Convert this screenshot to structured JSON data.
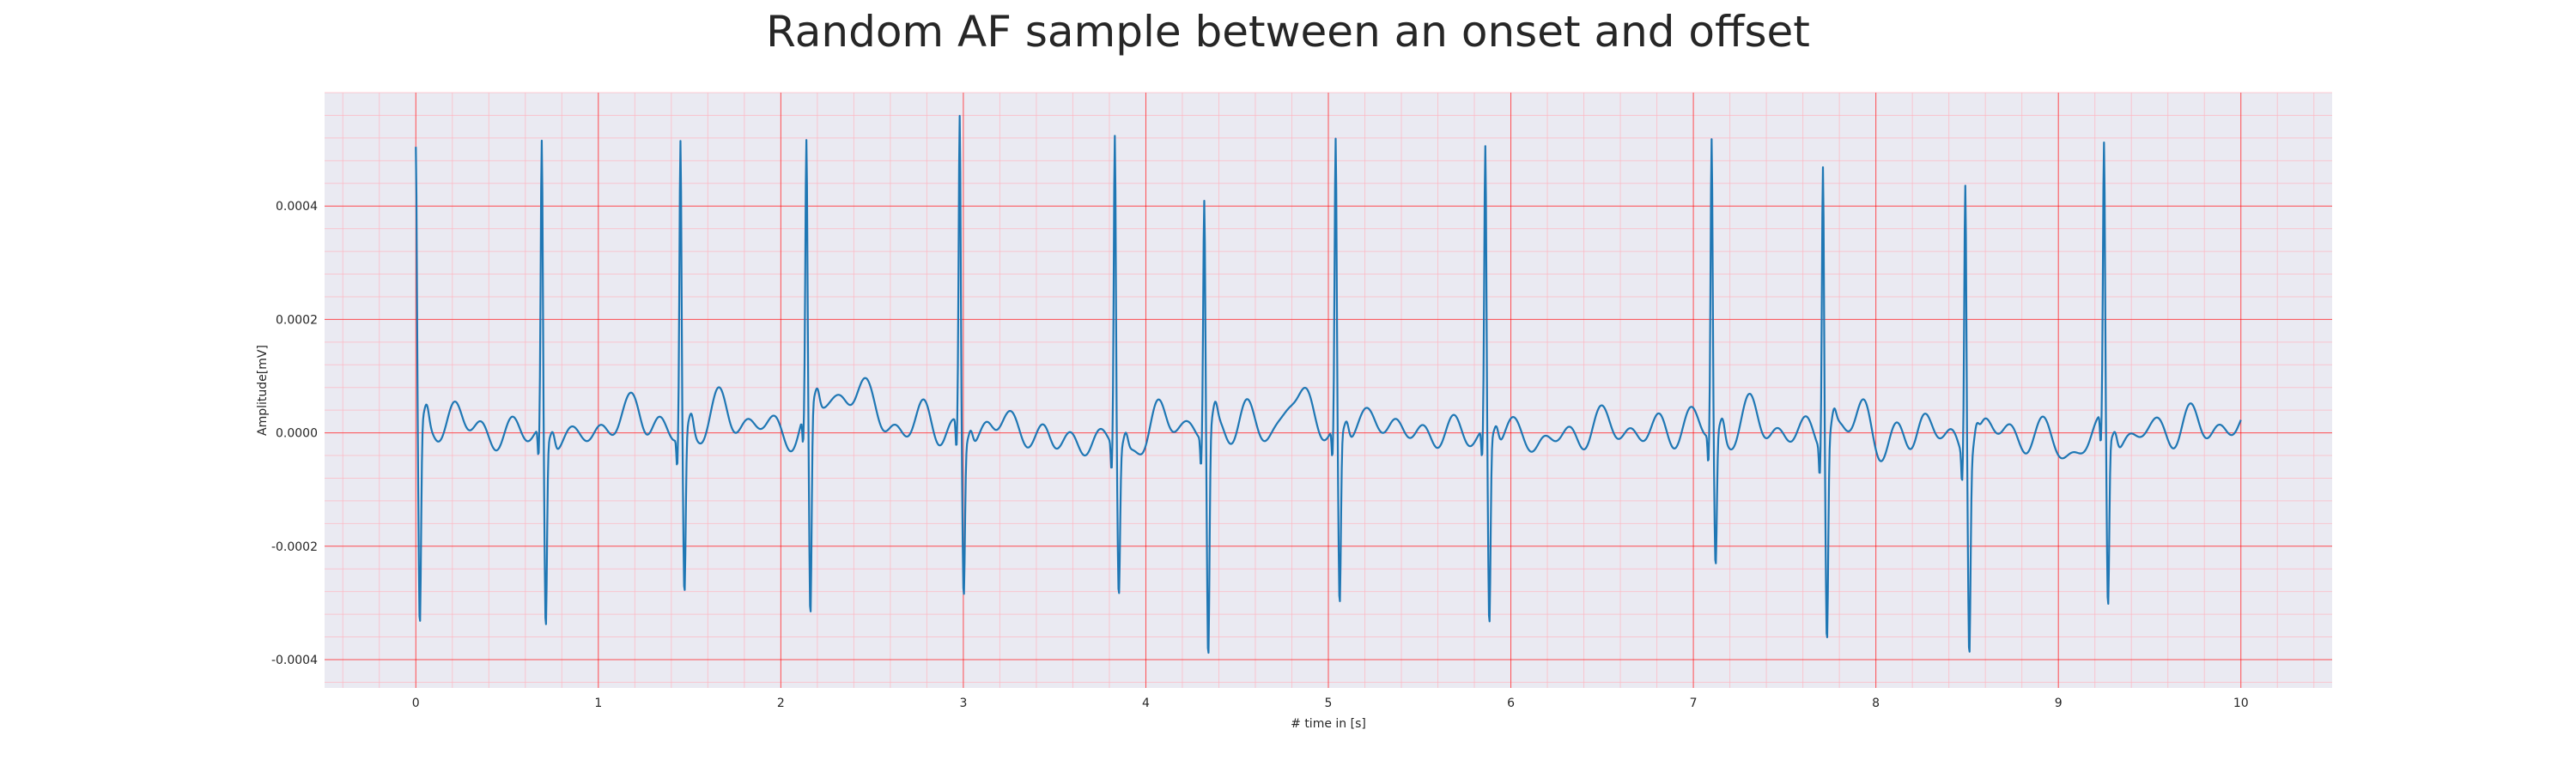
{
  "chart_data": {
    "type": "line",
    "title": "Random AF sample between an onset and offset",
    "xlabel": "# time in [s]",
    "ylabel": "Amplitude[mV]",
    "xlim": [
      -0.5,
      10.5
    ],
    "ylim": [
      -0.00045,
      0.0006
    ],
    "xticks": [
      0,
      1,
      2,
      3,
      4,
      5,
      6,
      7,
      8,
      9,
      10
    ],
    "yticks": [
      -0.0004,
      -0.0002,
      0.0,
      0.0002,
      0.0004
    ],
    "ytick_labels": [
      "-0.0004",
      "-0.0002",
      "0.0000",
      "0.0002",
      "0.0004"
    ],
    "xtick_labels": [
      "0",
      "1",
      "2",
      "3",
      "4",
      "5",
      "6",
      "7",
      "8",
      "9",
      "10"
    ],
    "grid": {
      "major": true,
      "minor": true,
      "major_color": "#ff0000",
      "minor_color": "#ffb6c1"
    },
    "background_color": "#eaeaf2",
    "series": [
      {
        "color": "#1f77b4",
        "sample_rate_hz": 300,
        "duration_s": 10,
        "beats": [
          {
            "t": 0.0,
            "r": 0.0005,
            "s": -0.00036
          },
          {
            "t": 0.69,
            "r": 0.00051,
            "s": -0.00034
          },
          {
            "t": 1.45,
            "r": 0.00052,
            "s": -0.00029
          },
          {
            "t": 2.14,
            "r": 0.00047,
            "s": -0.00038
          },
          {
            "t": 2.98,
            "r": 0.00055,
            "s": -0.00028
          },
          {
            "t": 3.83,
            "r": 0.00055,
            "s": -0.00026
          },
          {
            "t": 4.32,
            "r": 0.00042,
            "s": -0.0004
          },
          {
            "t": 5.04,
            "r": 0.00051,
            "s": -0.00031
          },
          {
            "t": 5.86,
            "r": 0.0005,
            "s": -0.00034
          },
          {
            "t": 7.1,
            "r": 0.00052,
            "s": -0.00024
          },
          {
            "t": 7.71,
            "r": 0.0005,
            "s": -0.00035
          },
          {
            "t": 8.49,
            "r": 0.00049,
            "s": -0.00034
          },
          {
            "t": 9.25,
            "r": 0.00049,
            "s": -0.00031
          }
        ]
      }
    ]
  }
}
